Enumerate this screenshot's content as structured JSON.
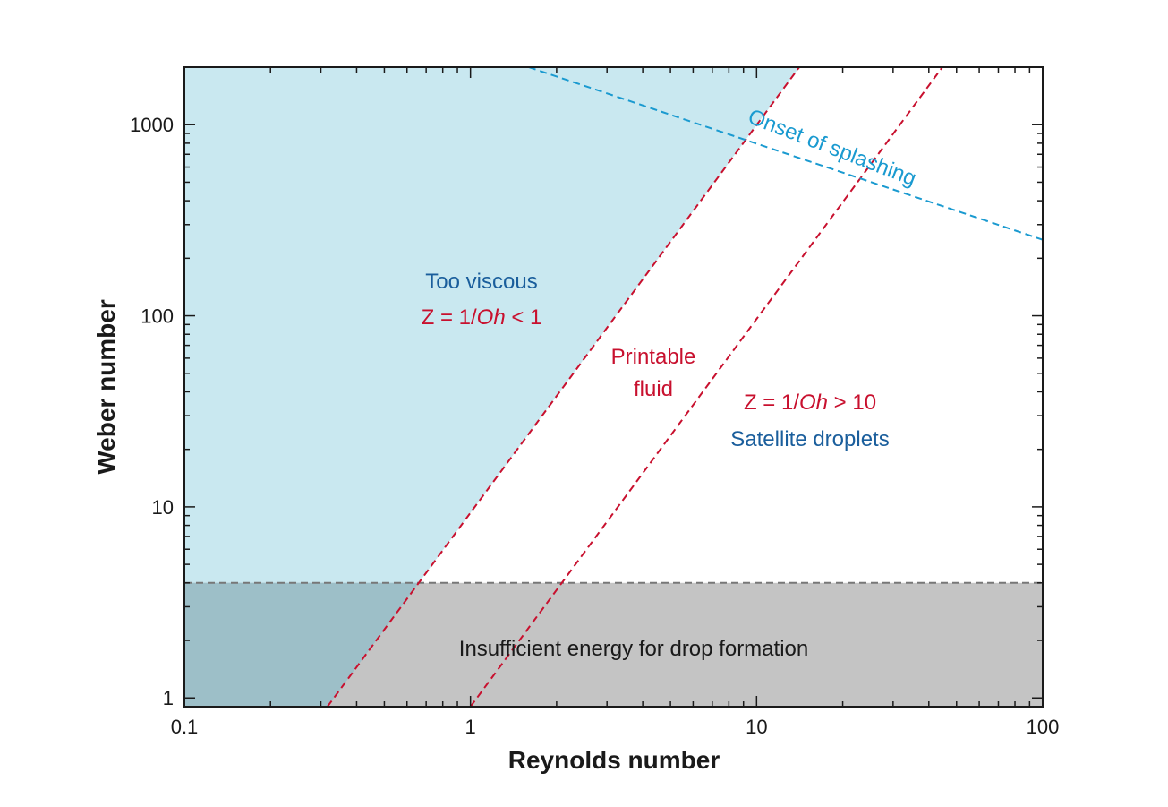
{
  "chart_data": {
    "type": "area",
    "title": "",
    "xlabel": "Reynolds number",
    "ylabel": "Weber number",
    "xscale": "log",
    "yscale": "log",
    "xlim": [
      0.1,
      100
    ],
    "ylim": [
      0.9,
      2000
    ],
    "xticks": [
      0.1,
      1,
      10,
      100
    ],
    "yticks": [
      1,
      10,
      100,
      1000
    ],
    "xtick_labels": [
      "0.1",
      "1",
      "10",
      "100"
    ],
    "ytick_labels": [
      "1",
      "10",
      "100",
      "1000"
    ],
    "grid": false,
    "legend": "none",
    "colors": {
      "viscous_region": "#c9e8f0",
      "low_energy_region": "#c4c4c4",
      "overlap_region": "#9dbfc8",
      "oh_lines": "#c8102e",
      "splash_line": "#1a9ad0",
      "energy_line": "#777777",
      "blue_text": "#1a5e9c",
      "red_text": "#c8102e"
    },
    "lines": {
      "z1": {
        "name": "Z = 1",
        "x": [
          0.3162,
          14.1
        ],
        "y": [
          0.9,
          2000
        ]
      },
      "z10": {
        "name": "Z = 10",
        "x": [
          1.0,
          44.6
        ],
        "y": [
          0.9,
          2000
        ]
      },
      "splash": {
        "label": "Onset of splashing",
        "x": [
          1.6,
          100
        ],
        "y": [
          2000,
          250
        ]
      },
      "energy": {
        "x": [
          0.1,
          100
        ],
        "y": [
          4,
          4
        ]
      }
    },
    "regions": [
      {
        "label_lines": [
          "Too viscous",
          "Z = 1/",
          "Oh",
          " < 1"
        ]
      },
      {
        "label_lines": [
          "Printable",
          "fluid"
        ]
      },
      {
        "label_lines": [
          "Z = 1/",
          "Oh",
          " > 10",
          "Satellite droplets"
        ]
      },
      {
        "label_lines": [
          "Insufficient energy for drop formation"
        ]
      }
    ],
    "text": {
      "too_viscous": "Too viscous",
      "z_lt1_prefix": "Z = 1/",
      "oh": "Oh",
      "z_lt1_suffix": " < 1",
      "printable": "Printable",
      "fluid": "fluid",
      "z_gt10_prefix": "Z = 1/",
      "z_gt10_suffix": " > 10",
      "satellite": "Satellite droplets",
      "insufficient": "Insufficient energy for drop formation",
      "splash": "Onset of splashing"
    }
  }
}
